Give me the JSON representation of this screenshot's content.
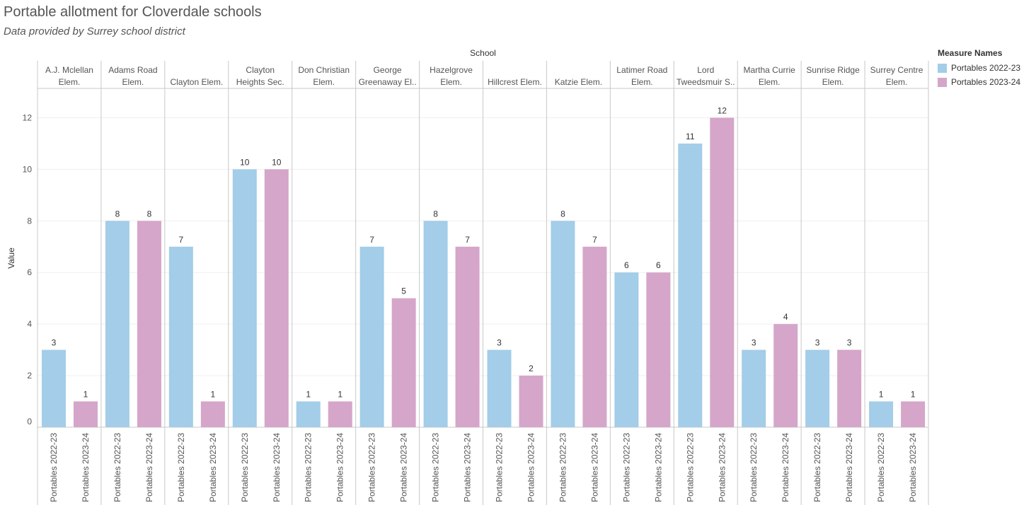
{
  "title": "Portable allotment for Cloverdale schools",
  "subtitle": "Data provided by Surrey school district",
  "colors": {
    "series_1": "#a3cde8",
    "series_2": "#d5a6c9",
    "grid": "#efefef",
    "divider": "#c8c8c8",
    "text": "#555555"
  },
  "chart_data": {
    "type": "bar",
    "title": "Portable allotment for Cloverdale schools",
    "subtitle": "Data provided by Surrey school district",
    "column_header": "School",
    "ylabel": "Value",
    "ylim": [
      0,
      13
    ],
    "yticks": [
      0,
      2,
      4,
      6,
      8,
      10,
      12
    ],
    "grid": true,
    "legend_title": "Measure Names",
    "legend_position": "top-right",
    "categories": [
      [
        "A.J. Mclellan",
        "Elem."
      ],
      [
        "Adams Road",
        "Elem."
      ],
      [
        "Clayton Elem."
      ],
      [
        "Clayton",
        "Heights Sec."
      ],
      [
        "Don Christian",
        "Elem."
      ],
      [
        "George",
        "Greenaway El.."
      ],
      [
        "Hazelgrove",
        "Elem."
      ],
      [
        "Hillcrest Elem."
      ],
      [
        "Katzie Elem."
      ],
      [
        "Latimer Road",
        "Elem."
      ],
      [
        "Lord",
        "Tweedsmuir S.."
      ],
      [
        "Martha Currie",
        "Elem."
      ],
      [
        "Sunrise Ridge",
        "Elem."
      ],
      [
        "Surrey Centre",
        "Elem."
      ]
    ],
    "series": [
      {
        "name": "Portables 2022-23",
        "values": [
          3,
          8,
          7,
          10,
          1,
          7,
          8,
          3,
          8,
          6,
          11,
          3,
          3,
          1
        ]
      },
      {
        "name": "Portables 2023-24",
        "values": [
          1,
          8,
          1,
          10,
          1,
          5,
          7,
          2,
          7,
          6,
          12,
          4,
          3,
          1
        ]
      }
    ]
  }
}
